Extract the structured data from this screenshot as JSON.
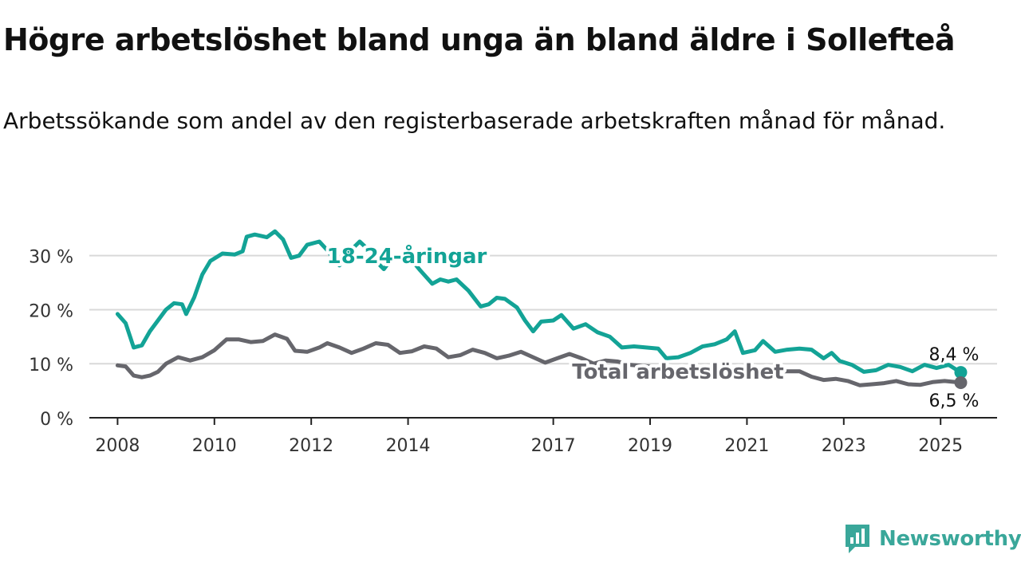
{
  "header": {
    "title": "Högre arbetslöshet bland unga än bland äldre i Sollefteå",
    "subtitle": "Arbetssökande som andel av den registerbaserade arbetskraften månad för månad."
  },
  "brand": {
    "name": "Newsworthy",
    "color": "#3aa79a"
  },
  "chart_data": {
    "type": "line",
    "x_ticks": [
      "2008",
      "2010",
      "2012",
      "2014",
      "2017",
      "2019",
      "2021",
      "2023",
      "2025"
    ],
    "y_ticks": [
      "0 %",
      "10 %",
      "20 %",
      "30 %"
    ],
    "y_tick_values": [
      0,
      10,
      20,
      30
    ],
    "ylim": [
      0,
      36
    ],
    "xlim": [
      "2007-06",
      "2026-03"
    ],
    "grid": true,
    "series": [
      {
        "name": "18-24-åringar",
        "color": "#13a396",
        "end_label": "8,4 %",
        "points": [
          [
            "2008-01",
            19.2
          ],
          [
            "2008-03",
            17.5
          ],
          [
            "2008-05",
            13.0
          ],
          [
            "2008-07",
            13.4
          ],
          [
            "2008-09",
            16.0
          ],
          [
            "2008-11",
            18.0
          ],
          [
            "2009-01",
            20.0
          ],
          [
            "2009-03",
            21.2
          ],
          [
            "2009-05",
            21.0
          ],
          [
            "2009-06",
            19.2
          ],
          [
            "2009-08",
            22.3
          ],
          [
            "2009-10",
            26.5
          ],
          [
            "2009-12",
            29.0
          ],
          [
            "2010-03",
            30.4
          ],
          [
            "2010-06",
            30.2
          ],
          [
            "2010-08",
            30.8
          ],
          [
            "2010-09",
            33.5
          ],
          [
            "2010-11",
            33.9
          ],
          [
            "2011-02",
            33.4
          ],
          [
            "2011-04",
            34.5
          ],
          [
            "2011-06",
            33.0
          ],
          [
            "2011-08",
            29.6
          ],
          [
            "2011-10",
            30.0
          ],
          [
            "2011-12",
            32.0
          ],
          [
            "2012-03",
            32.6
          ],
          [
            "2012-05",
            31.0
          ],
          [
            "2012-07",
            29.0
          ],
          [
            "2012-08",
            28.2
          ],
          [
            "2012-10",
            30.4
          ],
          [
            "2013-01",
            32.6
          ],
          [
            "2013-03",
            31.2
          ],
          [
            "2013-05",
            29.0
          ],
          [
            "2013-07",
            27.5
          ],
          [
            "2013-09",
            29.5
          ],
          [
            "2014-01",
            30.0
          ],
          [
            "2014-04",
            27.3
          ],
          [
            "2014-07",
            24.8
          ],
          [
            "2014-09",
            25.6
          ],
          [
            "2014-11",
            25.2
          ],
          [
            "2015-01",
            25.6
          ],
          [
            "2015-04",
            23.5
          ],
          [
            "2015-07",
            20.6
          ],
          [
            "2015-09",
            21.0
          ],
          [
            "2015-11",
            22.2
          ],
          [
            "2016-01",
            22.0
          ],
          [
            "2016-04",
            20.4
          ],
          [
            "2016-06",
            18.0
          ],
          [
            "2016-08",
            16.0
          ],
          [
            "2016-10",
            17.8
          ],
          [
            "2017-01",
            18.0
          ],
          [
            "2017-03",
            19.0
          ],
          [
            "2017-06",
            16.5
          ],
          [
            "2017-09",
            17.3
          ],
          [
            "2017-12",
            15.8
          ],
          [
            "2018-03",
            15.0
          ],
          [
            "2018-06",
            13.0
          ],
          [
            "2018-09",
            13.2
          ],
          [
            "2018-12",
            13.0
          ],
          [
            "2019-03",
            12.8
          ],
          [
            "2019-05",
            11.0
          ],
          [
            "2019-08",
            11.2
          ],
          [
            "2019-11",
            12.0
          ],
          [
            "2020-02",
            13.2
          ],
          [
            "2020-05",
            13.6
          ],
          [
            "2020-08",
            14.5
          ],
          [
            "2020-10",
            16.0
          ],
          [
            "2020-12",
            12.0
          ],
          [
            "2021-03",
            12.5
          ],
          [
            "2021-05",
            14.2
          ],
          [
            "2021-08",
            12.2
          ],
          [
            "2021-11",
            12.6
          ],
          [
            "2022-02",
            12.8
          ],
          [
            "2022-05",
            12.6
          ],
          [
            "2022-08",
            11.0
          ],
          [
            "2022-10",
            12.0
          ],
          [
            "2022-12",
            10.5
          ],
          [
            "2023-03",
            9.8
          ],
          [
            "2023-06",
            8.5
          ],
          [
            "2023-09",
            8.8
          ],
          [
            "2023-12",
            9.8
          ],
          [
            "2024-03",
            9.4
          ],
          [
            "2024-06",
            8.6
          ],
          [
            "2024-09",
            9.8
          ],
          [
            "2024-12",
            9.2
          ],
          [
            "2025-03",
            9.8
          ],
          [
            "2025-06",
            8.4
          ]
        ]
      },
      {
        "name": "Total arbetslöshet",
        "color": "#66666c",
        "end_label": "6,5 %",
        "points": [
          [
            "2008-01",
            9.7
          ],
          [
            "2008-03",
            9.5
          ],
          [
            "2008-05",
            7.8
          ],
          [
            "2008-07",
            7.5
          ],
          [
            "2008-09",
            7.8
          ],
          [
            "2008-11",
            8.5
          ],
          [
            "2009-01",
            10.0
          ],
          [
            "2009-04",
            11.2
          ],
          [
            "2009-07",
            10.6
          ],
          [
            "2009-10",
            11.2
          ],
          [
            "2010-01",
            12.5
          ],
          [
            "2010-04",
            14.5
          ],
          [
            "2010-07",
            14.5
          ],
          [
            "2010-10",
            14.0
          ],
          [
            "2011-01",
            14.2
          ],
          [
            "2011-04",
            15.4
          ],
          [
            "2011-07",
            14.6
          ],
          [
            "2011-09",
            12.4
          ],
          [
            "2011-12",
            12.2
          ],
          [
            "2012-03",
            13.0
          ],
          [
            "2012-05",
            13.8
          ],
          [
            "2012-08",
            13.0
          ],
          [
            "2012-11",
            12.0
          ],
          [
            "2013-02",
            12.8
          ],
          [
            "2013-05",
            13.8
          ],
          [
            "2013-08",
            13.5
          ],
          [
            "2013-11",
            12.0
          ],
          [
            "2014-02",
            12.3
          ],
          [
            "2014-05",
            13.2
          ],
          [
            "2014-08",
            12.8
          ],
          [
            "2014-11",
            11.2
          ],
          [
            "2015-02",
            11.6
          ],
          [
            "2015-05",
            12.6
          ],
          [
            "2015-08",
            12.0
          ],
          [
            "2015-11",
            11.0
          ],
          [
            "2016-02",
            11.5
          ],
          [
            "2016-05",
            12.2
          ],
          [
            "2016-08",
            11.2
          ],
          [
            "2016-11",
            10.2
          ],
          [
            "2017-02",
            11.0
          ],
          [
            "2017-05",
            11.8
          ],
          [
            "2017-08",
            11.0
          ],
          [
            "2017-11",
            10.0
          ],
          [
            "2018-02",
            10.6
          ],
          [
            "2018-05",
            10.4
          ],
          [
            "2018-08",
            9.8
          ],
          [
            "2018-11",
            9.6
          ],
          [
            "2019-02",
            9.4
          ],
          [
            "2019-05",
            9.2
          ],
          [
            "2019-08",
            9.0
          ],
          [
            "2019-11",
            9.2
          ],
          [
            "2020-02",
            9.0
          ],
          [
            "2020-05",
            9.4
          ],
          [
            "2020-08",
            9.0
          ],
          [
            "2020-11",
            8.8
          ],
          [
            "2021-02",
            8.8
          ],
          [
            "2021-05",
            9.0
          ],
          [
            "2021-08",
            8.6
          ],
          [
            "2021-11",
            8.6
          ],
          [
            "2022-02",
            8.6
          ],
          [
            "2022-05",
            7.6
          ],
          [
            "2022-08",
            7.0
          ],
          [
            "2022-11",
            7.2
          ],
          [
            "2023-02",
            6.8
          ],
          [
            "2023-05",
            6.0
          ],
          [
            "2023-08",
            6.2
          ],
          [
            "2023-11",
            6.4
          ],
          [
            "2024-02",
            6.8
          ],
          [
            "2024-05",
            6.2
          ],
          [
            "2024-08",
            6.1
          ],
          [
            "2024-11",
            6.6
          ],
          [
            "2025-02",
            6.8
          ],
          [
            "2025-06",
            6.5
          ]
        ]
      }
    ]
  }
}
